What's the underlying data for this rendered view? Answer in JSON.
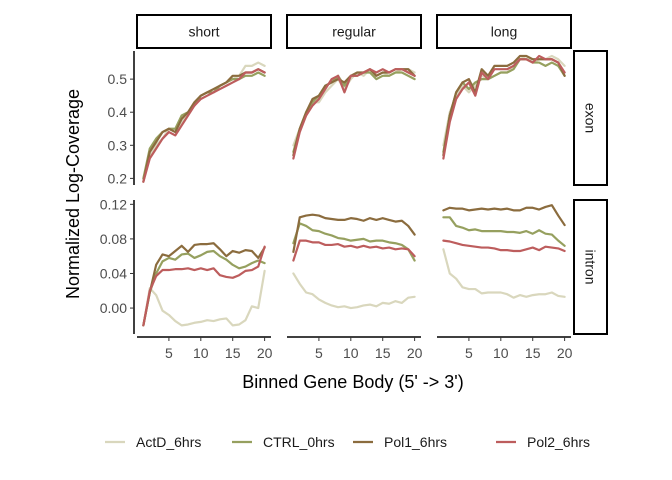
{
  "chart_data": {
    "type": "line",
    "xlabel": "Binned Gene Body (5' -> 3')",
    "ylabel": "Normalized Log-Coverage",
    "x": [
      1,
      2,
      3,
      4,
      5,
      6,
      7,
      8,
      9,
      10,
      11,
      12,
      13,
      14,
      15,
      16,
      17,
      18,
      19,
      20
    ],
    "x_ticks": [
      5,
      10,
      15,
      20
    ],
    "xlim": [
      0,
      21
    ],
    "columns": [
      "short",
      "regular",
      "long"
    ],
    "rows": [
      {
        "name": "exon",
        "ylim": [
          0.18,
          0.585
        ],
        "y_ticks": [
          0.2,
          0.3,
          0.4,
          0.5
        ],
        "y_tick_labels": [
          "0.2",
          "0.3",
          "0.4",
          "0.5"
        ]
      },
      {
        "name": "intron",
        "ylim": [
          -0.03,
          0.125
        ],
        "y_ticks": [
          0.0,
          0.04,
          0.08,
          0.12
        ],
        "y_tick_labels": [
          "0.00",
          "0.04",
          "0.08",
          "0.12"
        ]
      }
    ],
    "legend": {
      "position": "bottom"
    },
    "series": [
      {
        "name": "ActD_6hrs",
        "color": "#d9d7bd"
      },
      {
        "name": "CTRL_0hrs",
        "color": "#96a05f"
      },
      {
        "name": "Pol1_6hrs",
        "color": "#8b6c3e"
      },
      {
        "name": "Pol2_6hrs",
        "color": "#bd5d5d"
      }
    ],
    "panels": [
      {
        "column": "short",
        "row": "exon",
        "values": {
          "ActD_6hrs": [
            0.2,
            0.27,
            0.3,
            0.32,
            0.35,
            0.34,
            0.37,
            0.4,
            0.42,
            0.45,
            0.46,
            0.47,
            0.48,
            0.49,
            0.5,
            0.51,
            0.54,
            0.54,
            0.55,
            0.54
          ],
          "CTRL_0hrs": [
            0.2,
            0.29,
            0.32,
            0.34,
            0.35,
            0.35,
            0.39,
            0.4,
            0.42,
            0.45,
            0.46,
            0.46,
            0.48,
            0.49,
            0.5,
            0.5,
            0.51,
            0.51,
            0.52,
            0.51
          ],
          "Pol1_6hrs": [
            0.19,
            0.28,
            0.31,
            0.34,
            0.35,
            0.34,
            0.38,
            0.4,
            0.43,
            0.45,
            0.46,
            0.47,
            0.48,
            0.49,
            0.51,
            0.51,
            0.52,
            0.52,
            0.53,
            0.52
          ],
          "Pol2_6hrs": [
            0.19,
            0.26,
            0.29,
            0.32,
            0.34,
            0.33,
            0.36,
            0.39,
            0.42,
            0.44,
            0.45,
            0.46,
            0.47,
            0.48,
            0.49,
            0.5,
            0.52,
            0.52,
            0.53,
            0.52
          ]
        }
      },
      {
        "column": "regular",
        "row": "exon",
        "values": {
          "ActD_6hrs": [
            0.3,
            0.35,
            0.39,
            0.43,
            0.43,
            0.46,
            0.48,
            0.5,
            0.47,
            0.5,
            0.52,
            0.51,
            0.53,
            0.51,
            0.52,
            0.51,
            0.52,
            0.53,
            0.53,
            0.52
          ],
          "CTRL_0hrs": [
            0.28,
            0.35,
            0.4,
            0.43,
            0.45,
            0.48,
            0.49,
            0.51,
            0.48,
            0.51,
            0.51,
            0.52,
            0.52,
            0.5,
            0.51,
            0.51,
            0.52,
            0.52,
            0.51,
            0.5
          ],
          "Pol1_6hrs": [
            0.27,
            0.35,
            0.4,
            0.44,
            0.45,
            0.48,
            0.49,
            0.5,
            0.49,
            0.51,
            0.52,
            0.52,
            0.53,
            0.51,
            0.52,
            0.52,
            0.53,
            0.53,
            0.53,
            0.51
          ],
          "Pol2_6hrs": [
            0.26,
            0.34,
            0.39,
            0.42,
            0.44,
            0.47,
            0.5,
            0.51,
            0.46,
            0.51,
            0.51,
            0.52,
            0.53,
            0.52,
            0.53,
            0.52,
            0.53,
            0.53,
            0.52,
            0.51
          ]
        }
      },
      {
        "column": "long",
        "row": "exon",
        "values": {
          "ActD_6hrs": [
            0.3,
            0.4,
            0.45,
            0.48,
            0.46,
            0.48,
            0.51,
            0.5,
            0.51,
            0.52,
            0.52,
            0.54,
            0.56,
            0.57,
            0.55,
            0.56,
            0.56,
            0.57,
            0.56,
            0.54
          ],
          "CTRL_0hrs": [
            0.28,
            0.39,
            0.46,
            0.49,
            0.47,
            0.49,
            0.5,
            0.5,
            0.51,
            0.52,
            0.52,
            0.53,
            0.56,
            0.56,
            0.55,
            0.55,
            0.54,
            0.55,
            0.54,
            0.51
          ],
          "Pol1_6hrs": [
            0.27,
            0.39,
            0.46,
            0.49,
            0.5,
            0.46,
            0.53,
            0.51,
            0.54,
            0.54,
            0.54,
            0.55,
            0.57,
            0.57,
            0.56,
            0.56,
            0.56,
            0.56,
            0.55,
            0.51
          ],
          "Pol2_6hrs": [
            0.26,
            0.37,
            0.44,
            0.47,
            0.49,
            0.45,
            0.52,
            0.5,
            0.53,
            0.53,
            0.53,
            0.54,
            0.56,
            0.56,
            0.55,
            0.57,
            0.56,
            0.56,
            0.55,
            0.52
          ]
        }
      },
      {
        "column": "short",
        "row": "intron",
        "values": {
          "ActD_6hrs": [
            -0.02,
            0.023,
            0.015,
            -0.003,
            -0.008,
            -0.015,
            -0.02,
            -0.019,
            -0.017,
            -0.016,
            -0.014,
            -0.015,
            -0.013,
            -0.012,
            -0.02,
            -0.019,
            -0.014,
            0.002,
            0.0,
            0.043
          ],
          "CTRL_0hrs": [
            -0.02,
            0.018,
            0.04,
            0.054,
            0.058,
            0.056,
            0.062,
            0.063,
            0.058,
            0.061,
            0.065,
            0.066,
            0.06,
            0.056,
            0.05,
            0.046,
            0.048,
            0.052,
            0.055,
            0.052
          ],
          "Pol1_6hrs": [
            -0.02,
            0.018,
            0.05,
            0.062,
            0.06,
            0.066,
            0.072,
            0.065,
            0.073,
            0.074,
            0.074,
            0.075,
            0.068,
            0.06,
            0.066,
            0.064,
            0.067,
            0.066,
            0.058,
            0.07
          ],
          "Pol2_6hrs": [
            -0.02,
            0.02,
            0.037,
            0.044,
            0.044,
            0.045,
            0.045,
            0.046,
            0.044,
            0.046,
            0.044,
            0.046,
            0.038,
            0.036,
            0.035,
            0.038,
            0.043,
            0.044,
            0.048,
            0.071
          ]
        }
      },
      {
        "column": "regular",
        "row": "intron",
        "values": {
          "ActD_6hrs": [
            0.04,
            0.028,
            0.018,
            0.016,
            0.01,
            0.006,
            0.003,
            0.001,
            0.002,
            0.0,
            0.001,
            0.003,
            0.004,
            0.002,
            0.006,
            0.005,
            0.008,
            0.006,
            0.012,
            0.013
          ],
          "CTRL_0hrs": [
            0.075,
            0.098,
            0.095,
            0.09,
            0.089,
            0.086,
            0.084,
            0.081,
            0.08,
            0.078,
            0.079,
            0.08,
            0.077,
            0.078,
            0.078,
            0.076,
            0.075,
            0.073,
            0.068,
            0.055
          ],
          "Pol1_6hrs": [
            0.065,
            0.105,
            0.107,
            0.108,
            0.107,
            0.104,
            0.103,
            0.102,
            0.102,
            0.104,
            0.103,
            0.101,
            0.104,
            0.102,
            0.104,
            0.102,
            0.1,
            0.101,
            0.095,
            0.085
          ],
          "Pol2_6hrs": [
            0.055,
            0.078,
            0.078,
            0.076,
            0.076,
            0.073,
            0.073,
            0.074,
            0.071,
            0.072,
            0.07,
            0.072,
            0.07,
            0.071,
            0.069,
            0.07,
            0.068,
            0.069,
            0.068,
            0.06
          ]
        }
      },
      {
        "column": "long",
        "row": "intron",
        "values": {
          "ActD_6hrs": [
            0.068,
            0.04,
            0.034,
            0.024,
            0.022,
            0.022,
            0.017,
            0.018,
            0.018,
            0.018,
            0.016,
            0.012,
            0.015,
            0.013,
            0.015,
            0.016,
            0.016,
            0.018,
            0.014,
            0.013
          ],
          "CTRL_0hrs": [
            0.105,
            0.105,
            0.095,
            0.093,
            0.09,
            0.091,
            0.089,
            0.089,
            0.089,
            0.089,
            0.088,
            0.088,
            0.087,
            0.089,
            0.086,
            0.09,
            0.086,
            0.085,
            0.078,
            0.072
          ],
          "Pol1_6hrs": [
            0.113,
            0.116,
            0.115,
            0.115,
            0.113,
            0.114,
            0.115,
            0.114,
            0.115,
            0.114,
            0.115,
            0.113,
            0.113,
            0.116,
            0.116,
            0.114,
            0.117,
            0.119,
            0.107,
            0.096
          ],
          "Pol2_6hrs": [
            0.078,
            0.077,
            0.075,
            0.073,
            0.072,
            0.071,
            0.07,
            0.07,
            0.069,
            0.067,
            0.067,
            0.066,
            0.066,
            0.068,
            0.07,
            0.067,
            0.071,
            0.07,
            0.069,
            0.066
          ]
        }
      }
    ]
  }
}
